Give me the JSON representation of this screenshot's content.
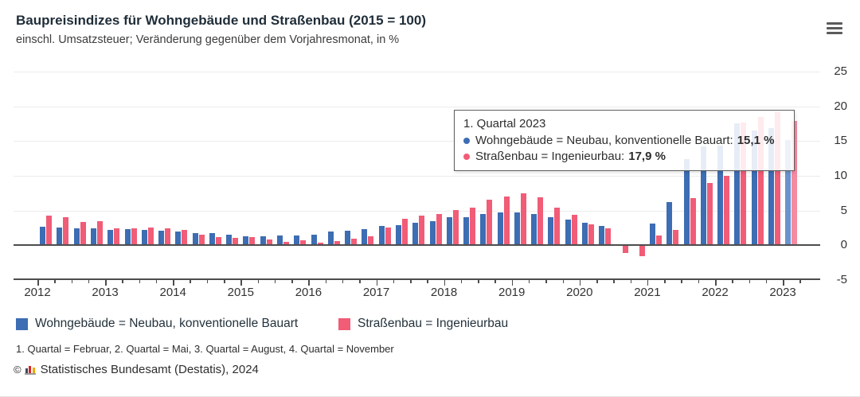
{
  "header": {
    "title": "Baupreisindizes für Wohngebäude und Straßenbau (2015 = 100)",
    "subtitle": "einschl. Umsatzsteuer; Veränderung gegenüber dem Vorjahresmonat, in %"
  },
  "colors": {
    "wohngebaeude": "#3d6db3",
    "strassenbau": "#f15c77",
    "wohngebaeude_highlight": "#6b92cd",
    "strassenbau_highlight": "#f58ba0",
    "grid": "#ececec",
    "axis": "#4d4d4d"
  },
  "chart_data": {
    "type": "bar",
    "title": "Baupreisindizes für Wohngebäude und Straßenbau (2015 = 100)",
    "subtitle": "einschl. Umsatzsteuer; Veränderung gegenüber dem Vorjahresmonat, in %",
    "ylabel": "Veränderung gegenüber dem Vorjahresmonat, in %",
    "xlabel": "",
    "ylim": [
      -5,
      25
    ],
    "yticks": [
      25,
      20,
      15,
      10,
      5,
      0,
      -5
    ],
    "grid": true,
    "legend_position": "bottom",
    "x_year_labels": [
      "2012",
      "2013",
      "2014",
      "2015",
      "2016",
      "2017",
      "2018",
      "2019",
      "2020",
      "2021",
      "2022",
      "2023"
    ],
    "categories": [
      "2012 Q1",
      "2012 Q2",
      "2012 Q3",
      "2012 Q4",
      "2013 Q1",
      "2013 Q2",
      "2013 Q3",
      "2013 Q4",
      "2014 Q1",
      "2014 Q2",
      "2014 Q3",
      "2014 Q4",
      "2015 Q1",
      "2015 Q2",
      "2015 Q3",
      "2015 Q4",
      "2016 Q1",
      "2016 Q2",
      "2016 Q3",
      "2016 Q4",
      "2017 Q1",
      "2017 Q2",
      "2017 Q3",
      "2017 Q4",
      "2018 Q1",
      "2018 Q2",
      "2018 Q3",
      "2018 Q4",
      "2019 Q1",
      "2019 Q2",
      "2019 Q3",
      "2019 Q4",
      "2020 Q1",
      "2020 Q2",
      "2020 Q3",
      "2020 Q4",
      "2021 Q1",
      "2021 Q2",
      "2021 Q3",
      "2021 Q4",
      "2022 Q1",
      "2022 Q2",
      "2022 Q3",
      "2022 Q4",
      "2023 Q1"
    ],
    "series": [
      {
        "name": "Wohngebäude = Neubau, konventionelle Bauart",
        "color": "#3d6db3",
        "values": [
          2.7,
          2.6,
          2.4,
          2.5,
          2.2,
          2.3,
          2.2,
          2.1,
          2.0,
          1.8,
          1.8,
          1.5,
          1.3,
          1.3,
          1.4,
          1.4,
          1.5,
          2.0,
          2.1,
          2.3,
          2.8,
          2.9,
          3.3,
          3.5,
          4.0,
          4.1,
          4.5,
          4.7,
          4.7,
          4.5,
          4.0,
          3.7,
          3.2,
          2.8,
          0.1,
          0.1,
          3.1,
          6.2,
          12.4,
          14.2,
          14.3,
          17.6,
          16.5,
          16.9,
          15.1
        ]
      },
      {
        "name": "Straßenbau = Ingenieurbau",
        "color": "#f15c77",
        "values": [
          4.3,
          4.0,
          3.4,
          3.5,
          2.5,
          2.4,
          2.6,
          2.4,
          2.2,
          1.5,
          1.2,
          1.1,
          1.2,
          0.8,
          0.5,
          0.7,
          0.4,
          0.6,
          1.0,
          1.3,
          2.6,
          3.8,
          4.3,
          4.5,
          5.1,
          5.4,
          6.6,
          7.0,
          7.5,
          6.9,
          5.4,
          4.4,
          3.0,
          2.4,
          -1.1,
          -1.6,
          1.4,
          2.2,
          6.8,
          9.0,
          10.0,
          17.7,
          18.5,
          19.2,
          17.9
        ]
      }
    ],
    "highlighted_category": "2023 Q1"
  },
  "tooltip": {
    "title": "1. Quartal 2023",
    "rows": [
      {
        "label": "Wohngebäude = Neubau, konventionelle Bauart:",
        "value": "15,1 %",
        "color": "#3d6db3"
      },
      {
        "label": "Straßenbau = Ingenieurbau:",
        "value": "17,9 %",
        "color": "#f15c77"
      }
    ]
  },
  "legend": {
    "items": [
      {
        "label": "Wohngebäude = Neubau, konventionelle Bauart",
        "color": "#3d6db3"
      },
      {
        "label": "Straßenbau = Ingenieurbau",
        "color": "#f15c77"
      }
    ]
  },
  "footnote": "1. Quartal = Februar, 2. Quartal = Mai, 3. Quartal = August, 4. Quartal = November",
  "source": {
    "copyright": "©",
    "text": "Statistisches Bundesamt (Destatis), 2024"
  }
}
